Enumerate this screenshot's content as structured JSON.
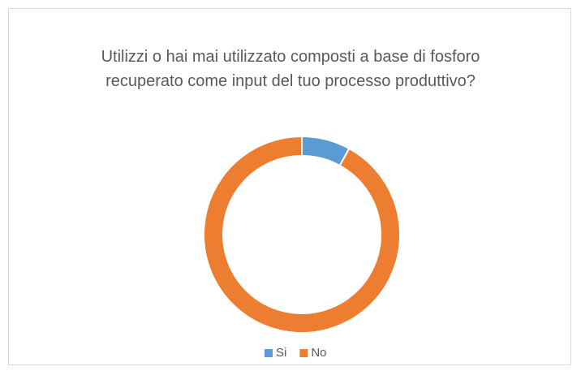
{
  "chart_data": {
    "type": "donut",
    "title": "Utilizzi o hai mai utilizzato composti a base di fosforo recuperato come input del tuo processo produttivo?",
    "categories": [
      "Si",
      "No"
    ],
    "values": [
      8,
      92
    ],
    "colors": [
      "#5b9bd5",
      "#ed7d31"
    ],
    "legend": "bottom"
  }
}
